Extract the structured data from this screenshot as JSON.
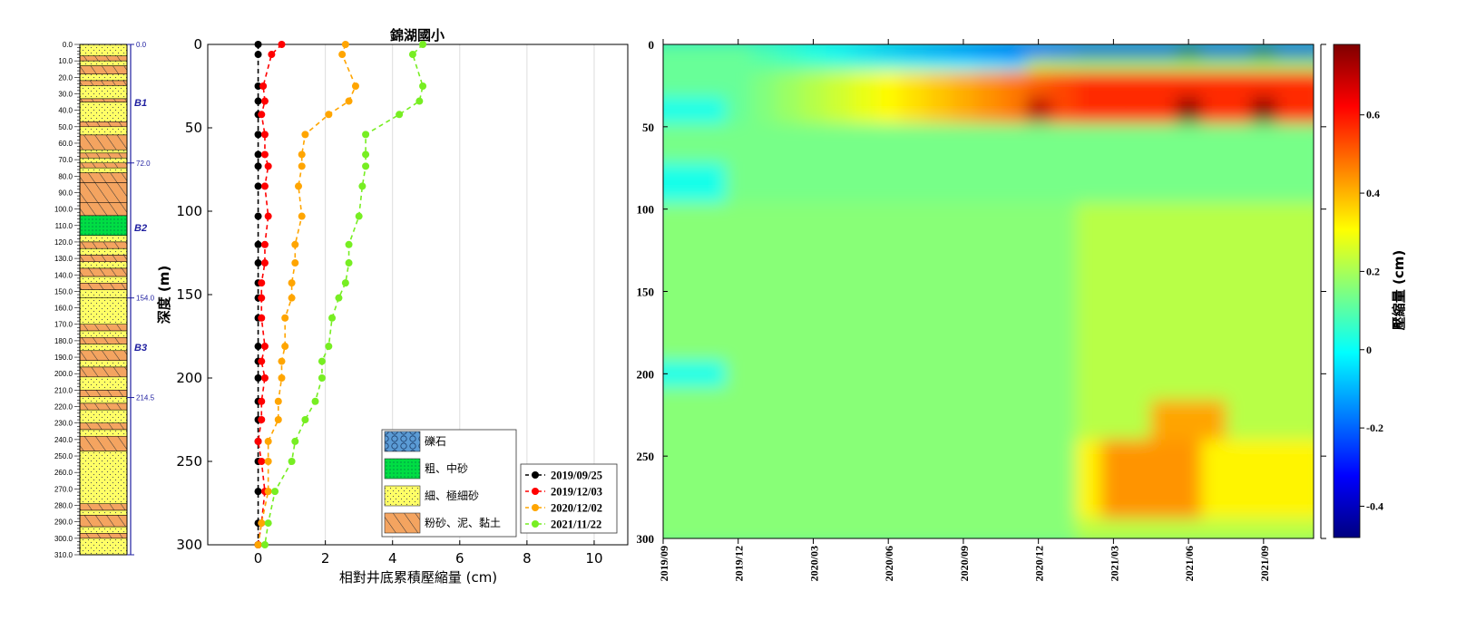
{
  "chart_data": [
    {
      "type": "table",
      "panel": "borehole-log",
      "depth_ticks": [
        "0.0",
        "10.0",
        "20.0",
        "30.0",
        "40.0",
        "50.0",
        "60.0",
        "70.0",
        "80.0",
        "90.0",
        "100.0",
        "110.0",
        "120.0",
        "130.0",
        "140.0",
        "150.0",
        "160.0",
        "170.0",
        "180.0",
        "190.0",
        "200.0",
        "210.0",
        "220.0",
        "230.0",
        "240.0",
        "250.0",
        "260.0",
        "270.0",
        "280.0",
        "290.0",
        "300.0",
        "310.0"
      ],
      "boundary_labels": [
        "0.0",
        "72.0",
        "154.0",
        "214.5"
      ],
      "unit_labels": [
        "B1",
        "B2",
        "B3"
      ],
      "layers": [
        {
          "top": 0,
          "bottom": 7,
          "lith": "fine"
        },
        {
          "top": 7,
          "bottom": 10,
          "lith": "silt"
        },
        {
          "top": 10,
          "bottom": 13,
          "lith": "fine"
        },
        {
          "top": 13,
          "bottom": 18,
          "lith": "silt"
        },
        {
          "top": 18,
          "bottom": 22,
          "lith": "fine"
        },
        {
          "top": 22,
          "bottom": 25,
          "lith": "silt"
        },
        {
          "top": 25,
          "bottom": 33,
          "lith": "fine"
        },
        {
          "top": 33,
          "bottom": 35,
          "lith": "silt"
        },
        {
          "top": 35,
          "bottom": 47,
          "lith": "fine"
        },
        {
          "top": 47,
          "bottom": 50,
          "lith": "silt"
        },
        {
          "top": 50,
          "bottom": 55,
          "lith": "fine"
        },
        {
          "top": 55,
          "bottom": 64,
          "lith": "silt"
        },
        {
          "top": 64,
          "bottom": 66,
          "lith": "fine"
        },
        {
          "top": 66,
          "bottom": 69,
          "lith": "silt"
        },
        {
          "top": 69,
          "bottom": 72,
          "lith": "fine"
        },
        {
          "top": 72,
          "bottom": 75,
          "lith": "silt"
        },
        {
          "top": 75,
          "bottom": 78,
          "lith": "fine"
        },
        {
          "top": 78,
          "bottom": 84,
          "lith": "silt"
        },
        {
          "top": 84,
          "bottom": 96,
          "lith": "silt"
        },
        {
          "top": 96,
          "bottom": 104,
          "lith": "silt"
        },
        {
          "top": 104,
          "bottom": 116,
          "lith": "coarse"
        },
        {
          "top": 116,
          "bottom": 120,
          "lith": "fine"
        },
        {
          "top": 120,
          "bottom": 124,
          "lith": "silt"
        },
        {
          "top": 124,
          "bottom": 128,
          "lith": "fine"
        },
        {
          "top": 128,
          "bottom": 132,
          "lith": "silt"
        },
        {
          "top": 132,
          "bottom": 136,
          "lith": "fine"
        },
        {
          "top": 136,
          "bottom": 141,
          "lith": "silt"
        },
        {
          "top": 141,
          "bottom": 145,
          "lith": "fine"
        },
        {
          "top": 145,
          "bottom": 149,
          "lith": "silt"
        },
        {
          "top": 149,
          "bottom": 154,
          "lith": "fine"
        },
        {
          "top": 154,
          "bottom": 170,
          "lith": "fine"
        },
        {
          "top": 170,
          "bottom": 174,
          "lith": "silt"
        },
        {
          "top": 174,
          "bottom": 178,
          "lith": "fine"
        },
        {
          "top": 178,
          "bottom": 182,
          "lith": "silt"
        },
        {
          "top": 182,
          "bottom": 186,
          "lith": "fine"
        },
        {
          "top": 186,
          "bottom": 192,
          "lith": "silt"
        },
        {
          "top": 192,
          "bottom": 196,
          "lith": "fine"
        },
        {
          "top": 196,
          "bottom": 202,
          "lith": "silt"
        },
        {
          "top": 202,
          "bottom": 210,
          "lith": "fine"
        },
        {
          "top": 210,
          "bottom": 214,
          "lith": "silt"
        },
        {
          "top": 214,
          "bottom": 218,
          "lith": "fine"
        },
        {
          "top": 218,
          "bottom": 222,
          "lith": "silt"
        },
        {
          "top": 222,
          "bottom": 230,
          "lith": "fine"
        },
        {
          "top": 230,
          "bottom": 234,
          "lith": "silt"
        },
        {
          "top": 234,
          "bottom": 238,
          "lith": "fine"
        },
        {
          "top": 238,
          "bottom": 247,
          "lith": "silt"
        },
        {
          "top": 247,
          "bottom": 279,
          "lith": "fine"
        },
        {
          "top": 279,
          "bottom": 283,
          "lith": "silt"
        },
        {
          "top": 283,
          "bottom": 286,
          "lith": "fine"
        },
        {
          "top": 286,
          "bottom": 293,
          "lith": "silt"
        },
        {
          "top": 293,
          "bottom": 297,
          "lith": "fine"
        },
        {
          "top": 297,
          "bottom": 300,
          "lith": "silt"
        },
        {
          "top": 300,
          "bottom": 310,
          "lith": "fine"
        }
      ],
      "colors": {
        "fine": "#ffff66",
        "silt": "#f4a460",
        "coarse": "#00dd44",
        "gravel": "#5b9bd5",
        "axis": "#1f1fa0"
      }
    },
    {
      "type": "line",
      "panel": "profile",
      "title": "錦湖國小",
      "xlabel": "相對井底累積壓縮量 (cm)",
      "ylabel": "深度 (m)",
      "xlim": [
        -1.5,
        11
      ],
      "ylim": [
        300,
        0
      ],
      "xticks": [
        "0",
        "2",
        "4",
        "6",
        "8",
        "10"
      ],
      "yticks": [
        "0",
        "50",
        "100",
        "150",
        "200",
        "250",
        "300"
      ],
      "grid": true,
      "depths": [
        0,
        6,
        25,
        34,
        42,
        54,
        66,
        73,
        85,
        103,
        120,
        131,
        143,
        152,
        164,
        181,
        190,
        200,
        214,
        225,
        238,
        250,
        268,
        287,
        300
      ],
      "series": [
        {
          "name": "2019/09/25",
          "color": "#000000",
          "values": [
            0,
            0,
            0,
            0,
            0,
            0,
            0,
            0,
            0,
            0,
            0,
            0,
            0,
            0,
            0,
            0,
            0,
            0,
            0,
            0,
            0,
            0,
            0,
            0,
            0
          ]
        },
        {
          "name": "2019/12/03",
          "color": "#ff0000",
          "values": [
            0.7,
            0.4,
            0.15,
            0.2,
            0.1,
            0.2,
            0.2,
            0.3,
            0.2,
            0.3,
            0.2,
            0.2,
            0.1,
            0.1,
            0.1,
            0.2,
            0.1,
            0.2,
            0.1,
            0.1,
            0,
            0.1,
            0.2,
            0.1,
            0
          ]
        },
        {
          "name": "2020/12/02",
          "color": "#ffa500",
          "values": [
            2.6,
            2.5,
            2.9,
            2.7,
            2.1,
            1.4,
            1.3,
            1.3,
            1.2,
            1.3,
            1.1,
            1.1,
            1.0,
            1.0,
            0.8,
            0.8,
            0.7,
            0.7,
            0.6,
            0.6,
            0.3,
            0.3,
            0.3,
            0.1,
            0
          ]
        },
        {
          "name": "2021/11/22",
          "color": "#77ee22",
          "values": [
            4.9,
            4.6,
            4.9,
            4.8,
            4.2,
            3.2,
            3.2,
            3.2,
            3.1,
            3.0,
            2.7,
            2.7,
            2.6,
            2.4,
            2.2,
            2.1,
            1.9,
            1.9,
            1.7,
            1.4,
            1.1,
            1.0,
            0.5,
            0.3,
            0.2
          ]
        }
      ],
      "legend_position": "bottom-right"
    },
    {
      "type": "heatmap",
      "panel": "time-depth",
      "colorbar_label": "壓縮量 (cm)",
      "colorbar_ticks": [
        "-0.4",
        "-0.2",
        "0",
        "0.2",
        "0.4",
        "0.6"
      ],
      "clim": [
        -0.48,
        0.78
      ],
      "yticks": [
        "0",
        "50",
        "100",
        "150",
        "200",
        "250",
        "300"
      ],
      "ylim": [
        0,
        300
      ],
      "xticks": [
        "2019/09",
        "2019/12",
        "2020/03",
        "2020/06",
        "2020/09",
        "2020/12",
        "2021/03",
        "2021/06",
        "2021/09"
      ],
      "xlim": [
        "2019/09",
        "2021/11"
      ],
      "background_value": 0.12
    }
  ],
  "legends": {
    "lithology": [
      {
        "label": "礫石",
        "key": "gravel"
      },
      {
        "label": "粗、中砂",
        "key": "coarse"
      },
      {
        "label": "細、極細砂",
        "key": "fine"
      },
      {
        "label": "粉砂、泥、黏土",
        "key": "silt"
      }
    ]
  }
}
